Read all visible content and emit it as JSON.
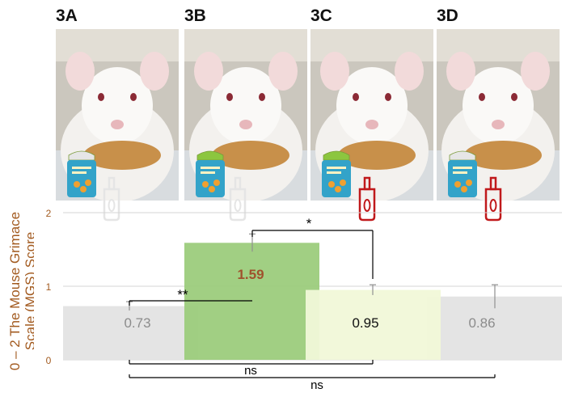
{
  "panels": [
    {
      "label": "3A",
      "jar_lid": "neutral",
      "sauce_bottle": "none"
    },
    {
      "label": "3B",
      "jar_lid": "green",
      "sauce_bottle": "none"
    },
    {
      "label": "3C",
      "jar_lid": "green",
      "sauce_bottle": "red"
    },
    {
      "label": "3D",
      "jar_lid": "neutral",
      "sauce_bottle": "red"
    }
  ],
  "colors": {
    "bar_3A": "#e3e3e3",
    "bar_3B": "#9ccc7c",
    "bar_3C": "#f1f8d8",
    "bar_3D": "#e3e3e3",
    "ylabel": "#a25a1f",
    "jar": "#33a3c9",
    "jar_lid_green": "#8cc63f",
    "sauce_bottle": "#c0191b",
    "highlight_value": "#a0522d"
  },
  "chart_data": {
    "type": "bar",
    "categories": [
      "3A",
      "3B",
      "3C",
      "3D"
    ],
    "values": [
      0.73,
      1.59,
      0.95,
      0.86
    ],
    "value_labels": [
      "0.73",
      "1.59",
      "0.95",
      "0.86"
    ],
    "errors": [
      0.06,
      0.12,
      0.07,
      0.16
    ],
    "ylabel_line1": "0 – 2 The Mouse Grimace",
    "ylabel_line2": "Scale (MGS) Score",
    "yticks": [
      "0",
      "1",
      "2"
    ],
    "ylim": [
      0,
      2
    ],
    "grid": true,
    "significance": [
      {
        "from": "3A",
        "to": "3B",
        "label": "**"
      },
      {
        "from": "3B",
        "to": "3C",
        "label": "*"
      },
      {
        "from": "3A",
        "to": "3C",
        "label": "ns"
      },
      {
        "from": "3A",
        "to": "3D",
        "label": "ns"
      }
    ]
  }
}
